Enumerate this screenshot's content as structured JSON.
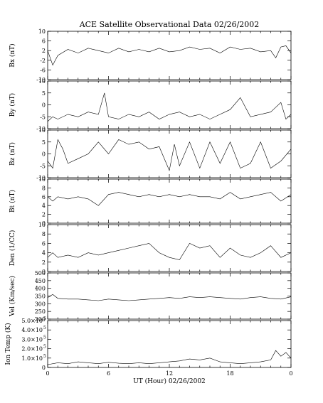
{
  "chart_data": {
    "type": "line",
    "title": "ACE Satellite Observational Data   02/26/2002",
    "xlabel": "UT (Hour)   02/26/2002",
    "x_ticks": [
      "0",
      "6",
      "12",
      "18",
      "0"
    ],
    "x_range_hours": [
      0,
      24
    ],
    "panels": [
      {
        "ylabel": "Bx (nT)",
        "ylim": [
          -10,
          10
        ],
        "ytick_values": [
          -10,
          -6,
          -2,
          2,
          6,
          10
        ],
        "ytick_labels": [
          "-10",
          "-6",
          "-2",
          "2",
          "6",
          "10"
        ],
        "x": [
          0,
          0.5,
          1,
          2,
          3,
          4,
          5,
          6,
          7,
          8,
          9,
          10,
          11,
          12,
          13,
          14,
          15,
          16,
          17,
          18,
          19,
          20,
          21,
          22,
          22.5,
          23,
          23.5,
          24
        ],
        "values": [
          2,
          -4,
          0,
          2.5,
          1,
          3,
          2,
          1,
          3,
          1.5,
          2.5,
          1.5,
          3,
          1.5,
          2,
          3.5,
          2.5,
          3,
          1,
          3.5,
          2.5,
          3,
          1.5,
          2,
          -1,
          3.5,
          4,
          1
        ]
      },
      {
        "ylabel": "By (nT)",
        "ylim": [
          -10,
          10
        ],
        "ytick_values": [
          -10,
          -5,
          0,
          5,
          10
        ],
        "ytick_labels": [
          "-10",
          "-5",
          "0",
          "5",
          "10"
        ],
        "x": [
          0,
          0.5,
          1,
          2,
          3,
          4,
          5,
          5.6,
          6,
          7,
          8,
          9,
          10,
          11,
          12,
          13,
          14,
          15,
          16,
          17,
          18,
          19,
          20,
          21,
          22,
          23,
          23.5,
          24
        ],
        "values": [
          -7,
          -5,
          -6,
          -4,
          -5,
          -3,
          -4,
          5,
          -5,
          -6,
          -4,
          -5,
          -3,
          -6,
          -4,
          -3,
          -5,
          -4,
          -6,
          -4,
          -2,
          3,
          -5,
          -4,
          -3,
          1,
          -6,
          -4
        ]
      },
      {
        "ylabel": "Bz (nT)",
        "ylim": [
          -10,
          10
        ],
        "ytick_values": [
          -10,
          -5,
          0,
          5,
          10
        ],
        "ytick_labels": [
          "-10",
          "-5",
          "0",
          "5",
          "10"
        ],
        "x": [
          0,
          0.5,
          1,
          1.5,
          2,
          3,
          4,
          5,
          6,
          7,
          8,
          9,
          10,
          11,
          12,
          12.5,
          13,
          14,
          15,
          16,
          17,
          18,
          19,
          20,
          21,
          22,
          23,
          24
        ],
        "values": [
          -3,
          -6,
          6,
          2,
          -4,
          -2,
          0,
          5,
          0,
          6,
          4,
          5,
          2,
          3,
          -7,
          4,
          -5,
          5,
          -6,
          5,
          -4,
          5,
          -6,
          -4,
          5,
          -6,
          -3,
          2
        ]
      },
      {
        "ylabel": "Bt (nT)",
        "ylim": [
          0,
          10
        ],
        "ytick_values": [
          0,
          2,
          4,
          6,
          8,
          10
        ],
        "ytick_labels": [
          "0",
          "2",
          "4",
          "6",
          "8",
          "10"
        ],
        "x": [
          0,
          0.5,
          1,
          2,
          3,
          4,
          5,
          6,
          7,
          8,
          9,
          10,
          11,
          12,
          13,
          14,
          15,
          16,
          17,
          18,
          19,
          20,
          21,
          22,
          23,
          24
        ],
        "values": [
          6,
          5,
          6,
          5.5,
          6,
          5.5,
          4,
          6.5,
          7,
          6.5,
          6,
          6.5,
          6,
          6.5,
          6,
          6.5,
          6,
          6,
          5.5,
          7,
          5.5,
          6,
          6.5,
          7,
          5,
          6.5
        ]
      },
      {
        "ylabel": "Den (1/CC)",
        "ylim": [
          0,
          10
        ],
        "ytick_values": [
          0,
          2,
          4,
          6,
          8,
          10
        ],
        "ytick_labels": [
          "0",
          "2",
          "4",
          "6",
          "8",
          "10"
        ],
        "x": [
          0,
          0.5,
          1,
          2,
          3,
          4,
          5,
          6,
          7,
          8,
          9,
          10,
          11,
          12,
          13,
          14,
          15,
          16,
          17,
          18,
          19,
          20,
          21,
          22,
          23,
          24
        ],
        "values": [
          3,
          4,
          3,
          3.5,
          3,
          4,
          3.5,
          4,
          4.5,
          5,
          5.5,
          6,
          4,
          3,
          2.5,
          6,
          5,
          5.5,
          3,
          5,
          3.5,
          3,
          4,
          5.5,
          3,
          4
        ]
      },
      {
        "ylabel": "Vel (Km/sec)",
        "ylim": [
          200,
          500
        ],
        "ytick_values": [
          200,
          250,
          300,
          350,
          400,
          450,
          500
        ],
        "ytick_labels": [
          "200",
          "250",
          "300",
          "350",
          "400",
          "450",
          "500"
        ],
        "x": [
          0,
          0.5,
          1,
          2,
          3,
          4,
          5,
          6,
          7,
          8,
          9,
          10,
          11,
          12,
          13,
          14,
          15,
          16,
          17,
          18,
          19,
          20,
          21,
          22,
          23,
          24
        ],
        "values": [
          340,
          360,
          335,
          330,
          330,
          325,
          320,
          330,
          325,
          320,
          325,
          330,
          335,
          340,
          335,
          345,
          340,
          345,
          340,
          335,
          330,
          340,
          345,
          335,
          330,
          345
        ]
      },
      {
        "ylabel": "Ion Temp (K)",
        "ylim": [
          0,
          500000
        ],
        "ytick_values": [
          0,
          100000,
          200000,
          300000,
          400000,
          500000
        ],
        "ytick_labels": [
          {
            "m": "0",
            "e": ""
          },
          {
            "m": "1.0×10",
            "e": "5"
          },
          {
            "m": "2.0×10",
            "e": "5"
          },
          {
            "m": "3.0×10",
            "e": "5"
          },
          {
            "m": "4.0×10",
            "e": "5"
          },
          {
            "m": "5.0×10",
            "e": "5"
          }
        ],
        "x": [
          0,
          1,
          2,
          3,
          4,
          5,
          6,
          7,
          8,
          9,
          10,
          11,
          12,
          13,
          14,
          15,
          16,
          17,
          18,
          19,
          20,
          21,
          22,
          22.5,
          23,
          23.5,
          24
        ],
        "values": [
          30000,
          50000,
          40000,
          60000,
          50000,
          40000,
          55000,
          45000,
          40000,
          50000,
          40000,
          50000,
          60000,
          70000,
          90000,
          80000,
          100000,
          60000,
          50000,
          40000,
          50000,
          60000,
          80000,
          180000,
          120000,
          160000,
          100000
        ]
      }
    ]
  }
}
